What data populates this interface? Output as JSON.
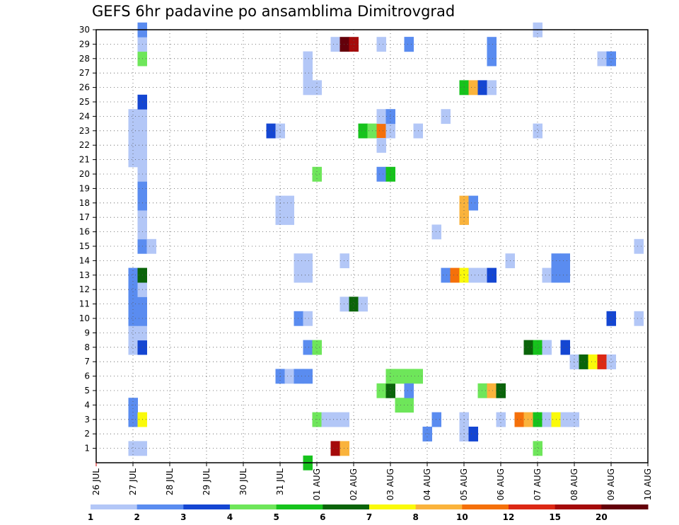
{
  "chart_data": {
    "type": "heatmap",
    "title": "GEFS 6hr padavine po ansamblima Dimitrovgrad",
    "x_ticks": [
      "26 JUL",
      "27 JUL",
      "28 JUL",
      "29 JUL",
      "30 JUL",
      "31 JUL",
      "01 AUG",
      "02 AUG",
      "03 AUG",
      "04 AUG",
      "05 AUG",
      "06 AUG",
      "07 AUG",
      "08 AUG",
      "09 AUG",
      "10 AUG"
    ],
    "y_ticks": [
      "1",
      "2",
      "3",
      "4",
      "5",
      "6",
      "7",
      "8",
      "9",
      "10",
      "11",
      "12",
      "13",
      "14",
      "15",
      "16",
      "17",
      "18",
      "19",
      "20",
      "21",
      "22",
      "23",
      "24",
      "25",
      "26",
      "27",
      "28",
      "29",
      "30"
    ],
    "xlim": [
      "26 JUL 00",
      "10 AUG 00"
    ],
    "ylim": [
      0,
      30
    ],
    "grid": true,
    "colorbar": {
      "labels": [
        "1",
        "2",
        "3",
        "4",
        "5",
        "6",
        "7",
        "8",
        "10",
        "12",
        "15",
        "20"
      ],
      "colors": [
        "#b3c7f7",
        "#5a8cf0",
        "#1446d2",
        "#6ee65a",
        "#16c31c",
        "#0a640a",
        "#fafa0a",
        "#fab33c",
        "#f5700a",
        "#dc2814",
        "#a50a0a",
        "#64000a"
      ]
    },
    "cells": [
      {
        "day": "27 JUL",
        "hour": 0,
        "member": 1,
        "color": "#b3c7f7"
      },
      {
        "day": "27 JUL",
        "hour": 6,
        "member": 1,
        "color": "#b3c7f7"
      },
      {
        "day": "27 JUL",
        "hour": 0,
        "member": 3,
        "color": "#5a8cf0"
      },
      {
        "day": "27 JUL",
        "hour": 6,
        "member": 3,
        "color": "#fafa0a"
      },
      {
        "day": "27 JUL",
        "hour": 0,
        "member": 4,
        "color": "#5a8cf0"
      },
      {
        "day": "27 JUL",
        "hour": 0,
        "member": 8,
        "color": "#b3c7f7"
      },
      {
        "day": "27 JUL",
        "hour": 6,
        "member": 8,
        "color": "#1446d2"
      },
      {
        "day": "27 JUL",
        "hour": 0,
        "member": 9,
        "color": "#b3c7f7"
      },
      {
        "day": "27 JUL",
        "hour": 6,
        "member": 9,
        "color": "#b3c7f7"
      },
      {
        "day": "27 JUL",
        "hour": 0,
        "member": 10,
        "color": "#5a8cf0"
      },
      {
        "day": "27 JUL",
        "hour": 6,
        "member": 10,
        "color": "#5a8cf0"
      },
      {
        "day": "27 JUL",
        "hour": 0,
        "member": 11,
        "color": "#5a8cf0"
      },
      {
        "day": "27 JUL",
        "hour": 6,
        "member": 11,
        "color": "#5a8cf0"
      },
      {
        "day": "27 JUL",
        "hour": 0,
        "member": 12,
        "color": "#5a8cf0"
      },
      {
        "day": "27 JUL",
        "hour": 6,
        "member": 12,
        "color": "#b3c7f7"
      },
      {
        "day": "27 JUL",
        "hour": 0,
        "member": 13,
        "color": "#5a8cf0"
      },
      {
        "day": "27 JUL",
        "hour": 6,
        "member": 13,
        "color": "#0a640a"
      },
      {
        "day": "27 JUL",
        "hour": 6,
        "member": 15,
        "color": "#5a8cf0"
      },
      {
        "day": "27 JUL",
        "hour": 12,
        "member": 15,
        "color": "#b3c7f7"
      },
      {
        "day": "27 JUL",
        "hour": 6,
        "member": 16,
        "color": "#b3c7f7"
      },
      {
        "day": "27 JUL",
        "hour": 6,
        "member": 17,
        "color": "#b3c7f7"
      },
      {
        "day": "27 JUL",
        "hour": 6,
        "member": 18,
        "color": "#5a8cf0"
      },
      {
        "day": "27 JUL",
        "hour": 6,
        "member": 19,
        "color": "#5a8cf0"
      },
      {
        "day": "27 JUL",
        "hour": 6,
        "member": 20,
        "color": "#b3c7f7"
      },
      {
        "day": "27 JUL",
        "hour": 0,
        "member": 21,
        "color": "#b3c7f7"
      },
      {
        "day": "27 JUL",
        "hour": 6,
        "member": 21,
        "color": "#b3c7f7"
      },
      {
        "day": "27 JUL",
        "hour": 0,
        "member": 22,
        "color": "#b3c7f7"
      },
      {
        "day": "27 JUL",
        "hour": 6,
        "member": 22,
        "color": "#b3c7f7"
      },
      {
        "day": "27 JUL",
        "hour": 0,
        "member": 23,
        "color": "#b3c7f7"
      },
      {
        "day": "27 JUL",
        "hour": 6,
        "member": 23,
        "color": "#b3c7f7"
      },
      {
        "day": "27 JUL",
        "hour": 0,
        "member": 24,
        "color": "#b3c7f7"
      },
      {
        "day": "27 JUL",
        "hour": 6,
        "member": 24,
        "color": "#b3c7f7"
      },
      {
        "day": "27 JUL",
        "hour": 6,
        "member": 25,
        "color": "#1446d2"
      },
      {
        "day": "27 JUL",
        "hour": 6,
        "member": 28,
        "color": "#6ee65a"
      },
      {
        "day": "27 JUL",
        "hour": 6,
        "member": 29,
        "color": "#b3c7f7"
      },
      {
        "day": "27 JUL",
        "hour": 6,
        "member": 30,
        "color": "#5a8cf0"
      },
      {
        "day": "31 JUL",
        "hour": 0,
        "member": 6,
        "color": "#5a8cf0"
      },
      {
        "day": "31 JUL",
        "hour": 6,
        "member": 6,
        "color": "#b3c7f7"
      },
      {
        "day": "31 JUL",
        "hour": 0,
        "member": 17,
        "color": "#b3c7f7"
      },
      {
        "day": "31 JUL",
        "hour": 6,
        "member": 17,
        "color": "#b3c7f7"
      },
      {
        "day": "31 JUL",
        "hour": 0,
        "member": 18,
        "color": "#b3c7f7"
      },
      {
        "day": "31 JUL",
        "hour": 6,
        "member": 18,
        "color": "#b3c7f7"
      },
      {
        "day": "30 JUL",
        "hour": 18,
        "member": 23,
        "color": "#1446d2"
      },
      {
        "day": "31 JUL",
        "hour": 0,
        "member": 23,
        "color": "#b3c7f7"
      },
      {
        "day": "31 JUL",
        "hour": 12,
        "member": 6,
        "color": "#5a8cf0"
      },
      {
        "day": "31 JUL",
        "hour": 18,
        "member": 6,
        "color": "#5a8cf0"
      },
      {
        "day": "31 JUL",
        "hour": 12,
        "member": 10,
        "color": "#5a8cf0"
      },
      {
        "day": "31 JUL",
        "hour": 18,
        "member": 10,
        "color": "#b3c7f7"
      },
      {
        "day": "31 JUL",
        "hour": 12,
        "member": 13,
        "color": "#b3c7f7"
      },
      {
        "day": "31 JUL",
        "hour": 18,
        "member": 13,
        "color": "#b3c7f7"
      },
      {
        "day": "31 JUL",
        "hour": 12,
        "member": 14,
        "color": "#b3c7f7"
      },
      {
        "day": "31 JUL",
        "hour": 18,
        "member": 14,
        "color": "#b3c7f7"
      },
      {
        "day": "31 JUL",
        "hour": 18,
        "member": 8,
        "color": "#5a8cf0"
      },
      {
        "day": "01 AUG",
        "hour": 0,
        "member": 8,
        "color": "#6ee65a"
      },
      {
        "day": "31 JUL",
        "hour": 18,
        "member": 0,
        "color": "#16c31c"
      },
      {
        "day": "31 JUL",
        "hour": 18,
        "member": 26,
        "color": "#b3c7f7"
      },
      {
        "day": "01 AUG",
        "hour": 0,
        "member": 26,
        "color": "#b3c7f7"
      },
      {
        "day": "31 JUL",
        "hour": 18,
        "member": 27,
        "color": "#b3c7f7"
      },
      {
        "day": "31 JUL",
        "hour": 18,
        "member": 28,
        "color": "#b3c7f7"
      },
      {
        "day": "01 AUG",
        "hour": 0,
        "member": 20,
        "color": "#6ee65a"
      },
      {
        "day": "01 AUG",
        "hour": 0,
        "member": 3,
        "color": "#6ee65a"
      },
      {
        "day": "01 AUG",
        "hour": 6,
        "member": 3,
        "color": "#b3c7f7"
      },
      {
        "day": "01 AUG",
        "hour": 12,
        "member": 3,
        "color": "#b3c7f7"
      },
      {
        "day": "01 AUG",
        "hour": 18,
        "member": 3,
        "color": "#b3c7f7"
      },
      {
        "day": "01 AUG",
        "hour": 12,
        "member": 1,
        "color": "#a50a0a"
      },
      {
        "day": "01 AUG",
        "hour": 18,
        "member": 1,
        "color": "#fab33c"
      },
      {
        "day": "01 AUG",
        "hour": 12,
        "member": 29,
        "color": "#b3c7f7"
      },
      {
        "day": "01 AUG",
        "hour": 18,
        "member": 29,
        "color": "#64000a"
      },
      {
        "day": "02 AUG",
        "hour": 0,
        "member": 29,
        "color": "#a50a0a"
      },
      {
        "day": "01 AUG",
        "hour": 18,
        "member": 11,
        "color": "#b3c7f7"
      },
      {
        "day": "02 AUG",
        "hour": 0,
        "member": 11,
        "color": "#0a640a"
      },
      {
        "day": "02 AUG",
        "hour": 6,
        "member": 11,
        "color": "#b3c7f7"
      },
      {
        "day": "01 AUG",
        "hour": 18,
        "member": 14,
        "color": "#b3c7f7"
      },
      {
        "day": "02 AUG",
        "hour": 6,
        "member": 23,
        "color": "#16c31c"
      },
      {
        "day": "02 AUG",
        "hour": 12,
        "member": 23,
        "color": "#6ee65a"
      },
      {
        "day": "02 AUG",
        "hour": 18,
        "member": 23,
        "color": "#f5700a"
      },
      {
        "day": "03 AUG",
        "hour": 0,
        "member": 23,
        "color": "#b3c7f7"
      },
      {
        "day": "02 AUG",
        "hour": 18,
        "member": 24,
        "color": "#b3c7f7"
      },
      {
        "day": "03 AUG",
        "hour": 0,
        "member": 24,
        "color": "#5a8cf0"
      },
      {
        "day": "02 AUG",
        "hour": 18,
        "member": 22,
        "color": "#b3c7f7"
      },
      {
        "day": "02 AUG",
        "hour": 18,
        "member": 29,
        "color": "#b3c7f7"
      },
      {
        "day": "02 AUG",
        "hour": 18,
        "member": 20,
        "color": "#5a8cf0"
      },
      {
        "day": "03 AUG",
        "hour": 0,
        "member": 20,
        "color": "#16c31c"
      },
      {
        "day": "02 AUG",
        "hour": 18,
        "member": 5,
        "color": "#6ee65a"
      },
      {
        "day": "03 AUG",
        "hour": 0,
        "member": 5,
        "color": "#0a640a"
      },
      {
        "day": "03 AUG",
        "hour": 0,
        "member": 6,
        "color": "#6ee65a"
      },
      {
        "day": "03 AUG",
        "hour": 6,
        "member": 6,
        "color": "#6ee65a"
      },
      {
        "day": "03 AUG",
        "hour": 12,
        "member": 6,
        "color": "#6ee65a"
      },
      {
        "day": "03 AUG",
        "hour": 18,
        "member": 6,
        "color": "#6ee65a"
      },
      {
        "day": "03 AUG",
        "hour": 6,
        "member": 4,
        "color": "#6ee65a"
      },
      {
        "day": "03 AUG",
        "hour": 12,
        "member": 4,
        "color": "#6ee65a"
      },
      {
        "day": "03 AUG",
        "hour": 12,
        "member": 5,
        "color": "#5a8cf0"
      },
      {
        "day": "03 AUG",
        "hour": 12,
        "member": 29,
        "color": "#5a8cf0"
      },
      {
        "day": "03 AUG",
        "hour": 12,
        "member": 29,
        "color": "#5a8cf0"
      },
      {
        "day": "03 AUG",
        "hour": 18,
        "member": 23,
        "color": "#b3c7f7"
      },
      {
        "day": "04 AUG",
        "hour": 0,
        "member": 2,
        "color": "#5a8cf0"
      },
      {
        "day": "04 AUG",
        "hour": 6,
        "member": 3,
        "color": "#5a8cf0"
      },
      {
        "day": "04 AUG",
        "hour": 6,
        "member": 16,
        "color": "#b3c7f7"
      },
      {
        "day": "04 AUG",
        "hour": 12,
        "member": 24,
        "color": "#b3c7f7"
      },
      {
        "day": "04 AUG",
        "hour": 12,
        "member": 13,
        "color": "#5a8cf0"
      },
      {
        "day": "04 AUG",
        "hour": 18,
        "member": 13,
        "color": "#f5700a"
      },
      {
        "day": "05 AUG",
        "hour": 0,
        "member": 13,
        "color": "#fafa0a"
      },
      {
        "day": "05 AUG",
        "hour": 6,
        "member": 13,
        "color": "#b3c7f7"
      },
      {
        "day": "05 AUG",
        "hour": 12,
        "member": 13,
        "color": "#b3c7f7"
      },
      {
        "day": "05 AUG",
        "hour": 18,
        "member": 13,
        "color": "#1446d2"
      },
      {
        "day": "05 AUG",
        "hour": 0,
        "member": 2,
        "color": "#b3c7f7"
      },
      {
        "day": "05 AUG",
        "hour": 0,
        "member": 3,
        "color": "#b3c7f7"
      },
      {
        "day": "05 AUG",
        "hour": 6,
        "member": 2,
        "color": "#1446d2"
      },
      {
        "day": "05 AUG",
        "hour": 0,
        "member": 17,
        "color": "#fab33c"
      },
      {
        "day": "05 AUG",
        "hour": 0,
        "member": 18,
        "color": "#fab33c"
      },
      {
        "day": "05 AUG",
        "hour": 6,
        "member": 18,
        "color": "#5a8cf0"
      },
      {
        "day": "05 AUG",
        "hour": 0,
        "member": 26,
        "color": "#16c31c"
      },
      {
        "day": "05 AUG",
        "hour": 6,
        "member": 26,
        "color": "#fab33c"
      },
      {
        "day": "05 AUG",
        "hour": 12,
        "member": 26,
        "color": "#1446d2"
      },
      {
        "day": "05 AUG",
        "hour": 18,
        "member": 26,
        "color": "#b3c7f7"
      },
      {
        "day": "05 AUG",
        "hour": 12,
        "member": 5,
        "color": "#6ee65a"
      },
      {
        "day": "05 AUG",
        "hour": 18,
        "member": 5,
        "color": "#fab33c"
      },
      {
        "day": "06 AUG",
        "hour": 0,
        "member": 5,
        "color": "#0a640a"
      },
      {
        "day": "05 AUG",
        "hour": 18,
        "member": 28,
        "color": "#5a8cf0"
      },
      {
        "day": "05 AUG",
        "hour": 18,
        "member": 29,
        "color": "#5a8cf0"
      },
      {
        "day": "06 AUG",
        "hour": 0,
        "member": 3,
        "color": "#b3c7f7"
      },
      {
        "day": "06 AUG",
        "hour": 6,
        "member": 14,
        "color": "#b3c7f7"
      },
      {
        "day": "06 AUG",
        "hour": 12,
        "member": 3,
        "color": "#f5700a"
      },
      {
        "day": "06 AUG",
        "hour": 18,
        "member": 3,
        "color": "#fab33c"
      },
      {
        "day": "07 AUG",
        "hour": 0,
        "member": 3,
        "color": "#16c31c"
      },
      {
        "day": "07 AUG",
        "hour": 6,
        "member": 3,
        "color": "#b3c7f7"
      },
      {
        "day": "06 AUG",
        "hour": 18,
        "member": 8,
        "color": "#0a640a"
      },
      {
        "day": "07 AUG",
        "hour": 0,
        "member": 8,
        "color": "#16c31c"
      },
      {
        "day": "07 AUG",
        "hour": 6,
        "member": 8,
        "color": "#b3c7f7"
      },
      {
        "day": "07 AUG",
        "hour": 0,
        "member": 1,
        "color": "#6ee65a"
      },
      {
        "day": "07 AUG",
        "hour": 0,
        "member": 23,
        "color": "#b3c7f7"
      },
      {
        "day": "07 AUG",
        "hour": 0,
        "member": 30,
        "color": "#b3c7f7"
      },
      {
        "day": "07 AUG",
        "hour": 6,
        "member": 13,
        "color": "#b3c7f7"
      },
      {
        "day": "07 AUG",
        "hour": 12,
        "member": 13,
        "color": "#5a8cf0"
      },
      {
        "day": "07 AUG",
        "hour": 18,
        "member": 13,
        "color": "#5a8cf0"
      },
      {
        "day": "07 AUG",
        "hour": 12,
        "member": 14,
        "color": "#5a8cf0"
      },
      {
        "day": "07 AUG",
        "hour": 18,
        "member": 14,
        "color": "#5a8cf0"
      },
      {
        "day": "07 AUG",
        "hour": 12,
        "member": 3,
        "color": "#fafa0a"
      },
      {
        "day": "07 AUG",
        "hour": 18,
        "member": 3,
        "color": "#b3c7f7"
      },
      {
        "day": "08 AUG",
        "hour": 0,
        "member": 3,
        "color": "#b3c7f7"
      },
      {
        "day": "07 AUG",
        "hour": 18,
        "member": 8,
        "color": "#1446d2"
      },
      {
        "day": "08 AUG",
        "hour": 0,
        "member": 7,
        "color": "#b3c7f7"
      },
      {
        "day": "08 AUG",
        "hour": 6,
        "member": 7,
        "color": "#0a640a"
      },
      {
        "day": "08 AUG",
        "hour": 12,
        "member": 7,
        "color": "#fafa0a"
      },
      {
        "day": "08 AUG",
        "hour": 18,
        "member": 7,
        "color": "#dc2814"
      },
      {
        "day": "09 AUG",
        "hour": 0,
        "member": 7,
        "color": "#b3c7f7"
      },
      {
        "day": "08 AUG",
        "hour": 18,
        "member": 28,
        "color": "#b3c7f7"
      },
      {
        "day": "09 AUG",
        "hour": 0,
        "member": 28,
        "color": "#5a8cf0"
      },
      {
        "day": "09 AUG",
        "hour": 0,
        "member": 10,
        "color": "#1446d2"
      },
      {
        "day": "09 AUG",
        "hour": 18,
        "member": 10,
        "color": "#b3c7f7"
      },
      {
        "day": "09 AUG",
        "hour": 18,
        "member": 15,
        "color": "#b3c7f7"
      }
    ]
  }
}
